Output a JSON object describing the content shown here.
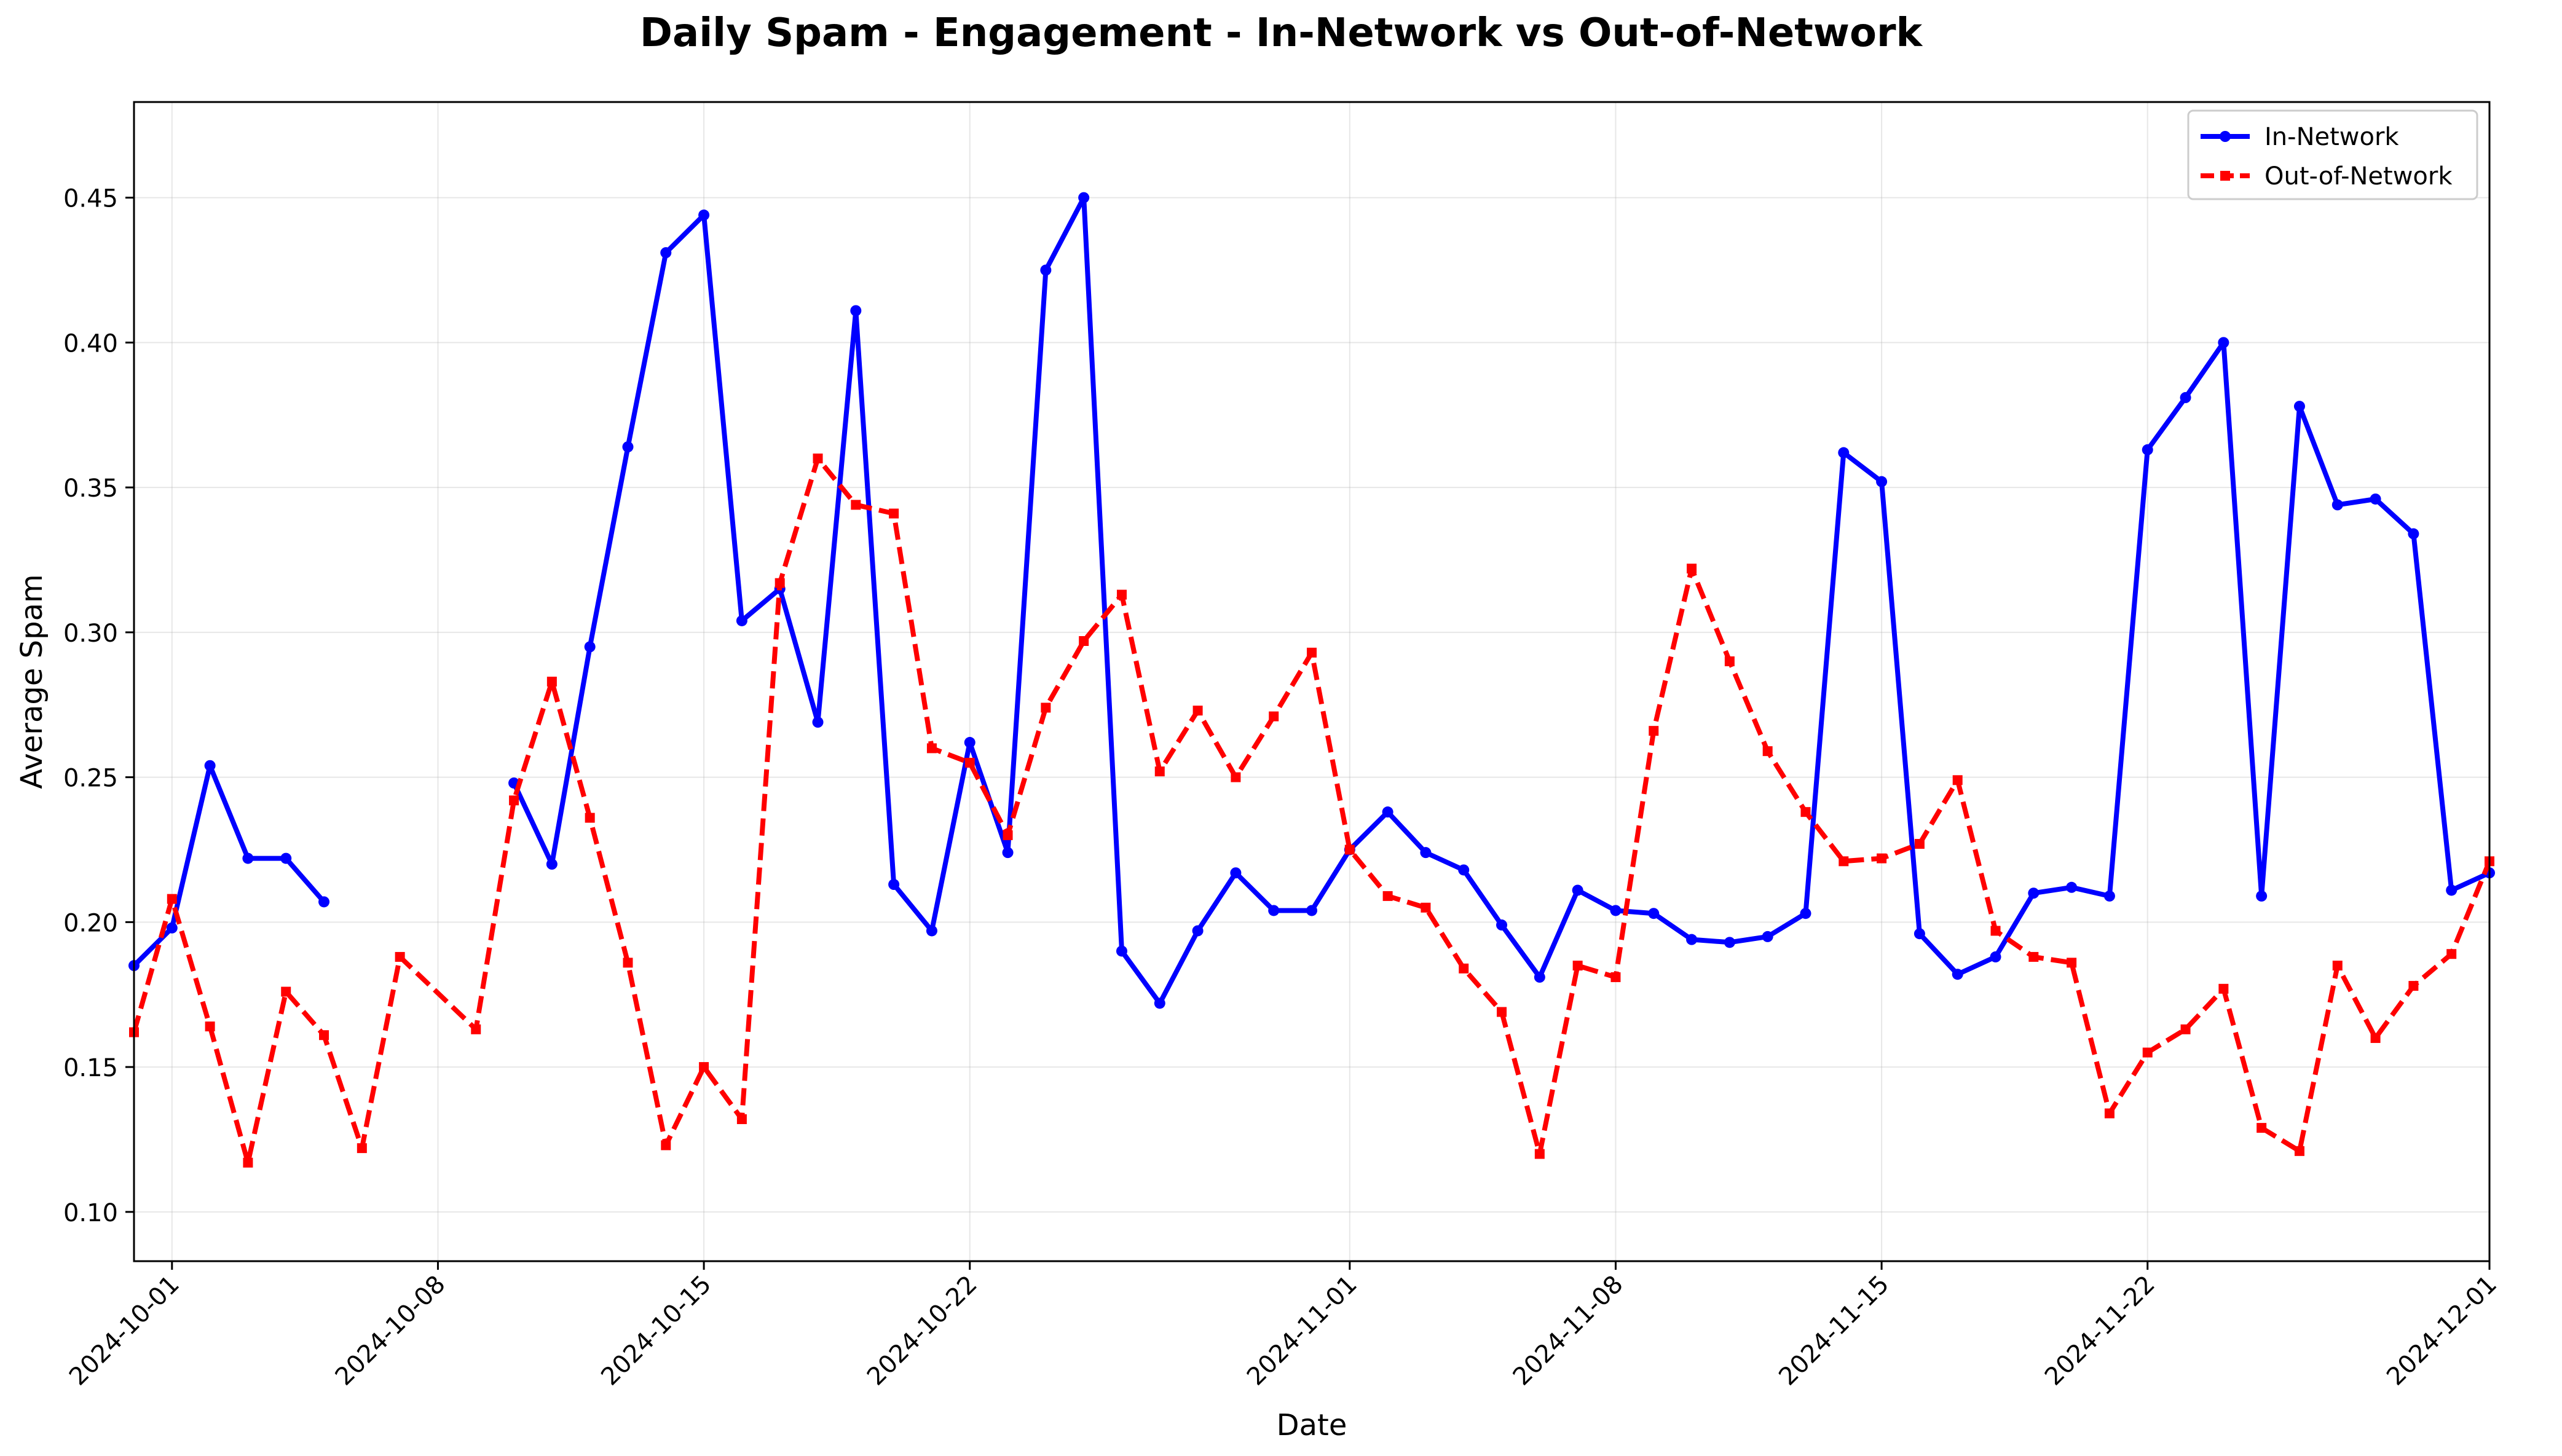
{
  "chart_data": {
    "type": "line",
    "title": "Daily Spam - Engagement - In-Network vs Out-of-Network",
    "xlabel": "Date",
    "ylabel": "Average Spam",
    "x_ticks": [
      "2024-10-01",
      "2024-10-08",
      "2024-10-15",
      "2024-10-22",
      "2024-11-01",
      "2024-11-08",
      "2024-11-15",
      "2024-11-22",
      "2024-12-01"
    ],
    "y_ticks": [
      0.1,
      0.15,
      0.2,
      0.25,
      0.3,
      0.35,
      0.4,
      0.45
    ],
    "xlim": [
      "2024-09-30",
      "2024-12-01"
    ],
    "ylim": [
      0.083,
      0.483
    ],
    "grid": true,
    "legend_position": "top-right",
    "series": [
      {
        "name": "In-Network",
        "color": "#0000ff",
        "line_style": "solid",
        "marker": "circle",
        "points": [
          [
            "2024-09-30",
            0.185
          ],
          [
            "2024-10-01",
            0.198
          ],
          [
            "2024-10-02",
            0.254
          ],
          [
            "2024-10-03",
            0.222
          ],
          [
            "2024-10-04",
            0.222
          ],
          [
            "2024-10-05",
            0.207
          ],
          [
            "2024-10-10",
            0.248
          ],
          [
            "2024-10-11",
            0.22
          ],
          [
            "2024-10-12",
            0.295
          ],
          [
            "2024-10-13",
            0.364
          ],
          [
            "2024-10-14",
            0.431
          ],
          [
            "2024-10-15",
            0.444
          ],
          [
            "2024-10-16",
            0.304
          ],
          [
            "2024-10-17",
            0.315
          ],
          [
            "2024-10-18",
            0.269
          ],
          [
            "2024-10-19",
            0.411
          ],
          [
            "2024-10-20",
            0.213
          ],
          [
            "2024-10-21",
            0.197
          ],
          [
            "2024-10-22",
            0.262
          ],
          [
            "2024-10-23",
            0.224
          ],
          [
            "2024-10-24",
            0.425
          ],
          [
            "2024-10-25",
            0.45
          ],
          [
            "2024-10-26",
            0.19
          ],
          [
            "2024-10-27",
            0.172
          ],
          [
            "2024-10-28",
            0.197
          ],
          [
            "2024-10-29",
            0.217
          ],
          [
            "2024-10-30",
            0.204
          ],
          [
            "2024-10-31",
            0.204
          ],
          [
            "2024-11-01",
            0.225
          ],
          [
            "2024-11-02",
            0.238
          ],
          [
            "2024-11-03",
            0.224
          ],
          [
            "2024-11-04",
            0.218
          ],
          [
            "2024-11-05",
            0.199
          ],
          [
            "2024-11-06",
            0.181
          ],
          [
            "2024-11-07",
            0.211
          ],
          [
            "2024-11-08",
            0.204
          ],
          [
            "2024-11-09",
            0.203
          ],
          [
            "2024-11-10",
            0.194
          ],
          [
            "2024-11-11",
            0.193
          ],
          [
            "2024-11-12",
            0.195
          ],
          [
            "2024-11-13",
            0.203
          ],
          [
            "2024-11-14",
            0.362
          ],
          [
            "2024-11-15",
            0.352
          ],
          [
            "2024-11-16",
            0.196
          ],
          [
            "2024-11-17",
            0.182
          ],
          [
            "2024-11-18",
            0.188
          ],
          [
            "2024-11-19",
            0.21
          ],
          [
            "2024-11-20",
            0.212
          ],
          [
            "2024-11-21",
            0.209
          ],
          [
            "2024-11-22",
            0.363
          ],
          [
            "2024-11-23",
            0.381
          ],
          [
            "2024-11-24",
            0.4
          ],
          [
            "2024-11-25",
            0.209
          ],
          [
            "2024-11-26",
            0.378
          ],
          [
            "2024-11-27",
            0.344
          ],
          [
            "2024-11-28",
            0.346
          ],
          [
            "2024-11-29",
            0.334
          ],
          [
            "2024-11-30",
            0.211
          ],
          [
            "2024-12-01",
            0.217
          ]
        ]
      },
      {
        "name": "Out-of-Network",
        "color": "#ff0000",
        "line_style": "dashed",
        "marker": "square",
        "points": [
          [
            "2024-09-30",
            0.162
          ],
          [
            "2024-10-01",
            0.208
          ],
          [
            "2024-10-02",
            0.164
          ],
          [
            "2024-10-03",
            0.117
          ],
          [
            "2024-10-04",
            0.176
          ],
          [
            "2024-10-05",
            0.161
          ],
          [
            "2024-10-06",
            0.122
          ],
          [
            "2024-10-07",
            0.188
          ],
          [
            "2024-10-09",
            0.163
          ],
          [
            "2024-10-10",
            0.242
          ],
          [
            "2024-10-11",
            0.283
          ],
          [
            "2024-10-12",
            0.236
          ],
          [
            "2024-10-13",
            0.186
          ],
          [
            "2024-10-14",
            0.123
          ],
          [
            "2024-10-15",
            0.15
          ],
          [
            "2024-10-16",
            0.132
          ],
          [
            "2024-10-17",
            0.317
          ],
          [
            "2024-10-18",
            0.36
          ],
          [
            "2024-10-19",
            0.344
          ],
          [
            "2024-10-20",
            0.341
          ],
          [
            "2024-10-21",
            0.26
          ],
          [
            "2024-10-22",
            0.255
          ],
          [
            "2024-10-23",
            0.23
          ],
          [
            "2024-10-24",
            0.274
          ],
          [
            "2024-10-25",
            0.297
          ],
          [
            "2024-10-26",
            0.313
          ],
          [
            "2024-10-27",
            0.252
          ],
          [
            "2024-10-28",
            0.273
          ],
          [
            "2024-10-29",
            0.25
          ],
          [
            "2024-10-30",
            0.271
          ],
          [
            "2024-10-31",
            0.293
          ],
          [
            "2024-11-01",
            0.225
          ],
          [
            "2024-11-02",
            0.209
          ],
          [
            "2024-11-03",
            0.205
          ],
          [
            "2024-11-04",
            0.184
          ],
          [
            "2024-11-05",
            0.169
          ],
          [
            "2024-11-06",
            0.12
          ],
          [
            "2024-11-07",
            0.185
          ],
          [
            "2024-11-08",
            0.181
          ],
          [
            "2024-11-09",
            0.266
          ],
          [
            "2024-11-10",
            0.322
          ],
          [
            "2024-11-11",
            0.29
          ],
          [
            "2024-11-12",
            0.259
          ],
          [
            "2024-11-13",
            0.238
          ],
          [
            "2024-11-14",
            0.221
          ],
          [
            "2024-11-15",
            0.222
          ],
          [
            "2024-11-16",
            0.227
          ],
          [
            "2024-11-17",
            0.249
          ],
          [
            "2024-11-18",
            0.197
          ],
          [
            "2024-11-19",
            0.188
          ],
          [
            "2024-11-20",
            0.186
          ],
          [
            "2024-11-21",
            0.134
          ],
          [
            "2024-11-22",
            0.155
          ],
          [
            "2024-11-23",
            0.163
          ],
          [
            "2024-11-24",
            0.177
          ],
          [
            "2024-11-25",
            0.129
          ],
          [
            "2024-11-26",
            0.121
          ],
          [
            "2024-11-27",
            0.185
          ],
          [
            "2024-11-28",
            0.16
          ],
          [
            "2024-11-29",
            0.178
          ],
          [
            "2024-11-30",
            0.189
          ],
          [
            "2024-12-01",
            0.221
          ]
        ]
      }
    ]
  }
}
